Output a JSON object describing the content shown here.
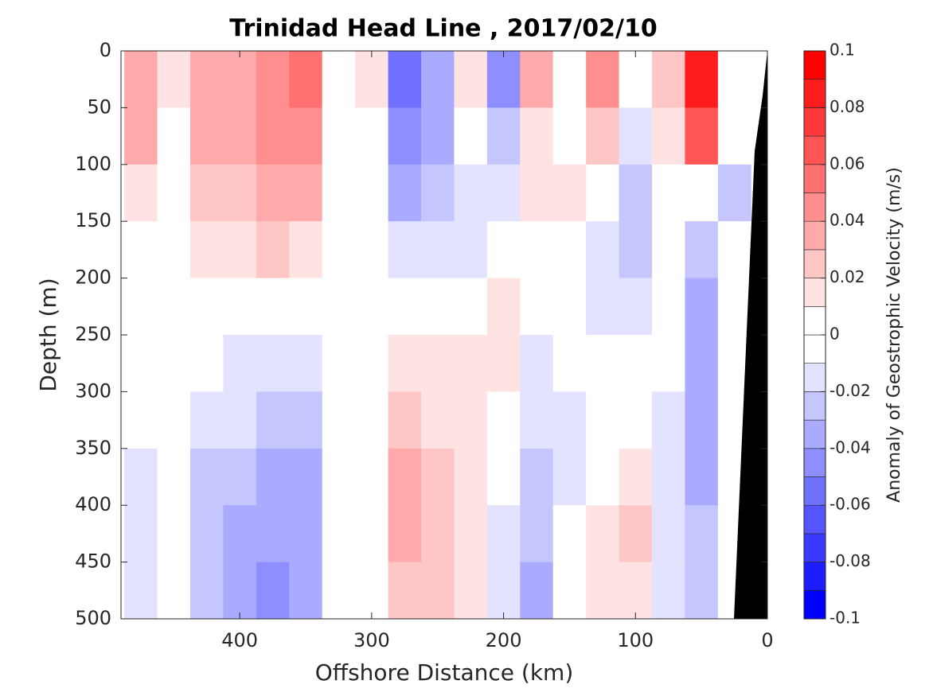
{
  "chart_data": {
    "type": "contour",
    "title": "Trinidad Head Line , 2017/02/10",
    "xlabel": "Offshore Distance (km)",
    "ylabel": "Depth (m)",
    "colorbar_label": "Anomaly of Geostrophic Velocity (m/s)",
    "xlim": [
      490,
      0
    ],
    "xticks": [
      400,
      300,
      200,
      100,
      0
    ],
    "ylim": [
      0,
      500
    ],
    "yticks": [
      0,
      50,
      100,
      150,
      200,
      250,
      300,
      350,
      400,
      450,
      500
    ],
    "clim": [
      -0.1,
      0.1
    ],
    "cstep": 0.01,
    "cticks": [
      -0.1,
      -0.08,
      -0.06,
      -0.04,
      -0.02,
      0,
      0.02,
      0.04,
      0.06,
      0.08,
      0.1
    ],
    "neg_color": "#0000ff",
    "pos_color": "#ff0000",
    "bottom_color": "#000000",
    "x": [
      475,
      450,
      425,
      400,
      375,
      350,
      325,
      300,
      275,
      250,
      225,
      200,
      175,
      150,
      125,
      100,
      75,
      50,
      25
    ],
    "depth": [
      25,
      75,
      125,
      175,
      225,
      275,
      325,
      375,
      425,
      475
    ],
    "z": [
      [
        0.03,
        0.01,
        0.03,
        0.03,
        0.04,
        0.05,
        0,
        0.01,
        -0.05,
        -0.03,
        0.01,
        -0.04,
        0.03,
        0,
        0.04,
        0,
        0.02,
        0.08,
        0
      ],
      [
        0.03,
        0,
        0.03,
        0.03,
        0.04,
        0.04,
        0,
        0,
        -0.04,
        -0.03,
        0,
        -0.02,
        0.01,
        0,
        0.02,
        -0.01,
        0.01,
        0.06,
        0
      ],
      [
        0.01,
        0,
        0.02,
        0.02,
        0.03,
        0.03,
        0,
        0,
        -0.03,
        -0.02,
        -0.01,
        -0.01,
        0.01,
        0.01,
        0,
        -0.02,
        0,
        0,
        -0.02
      ],
      [
        0,
        0,
        0.01,
        0.01,
        0.02,
        0.01,
        0,
        0,
        -0.01,
        -0.01,
        -0.01,
        0,
        0,
        0,
        -0.01,
        -0.02,
        0,
        -0.02,
        0
      ],
      [
        0,
        0,
        0,
        0,
        0,
        0,
        0,
        0,
        0,
        0,
        0,
        0.01,
        0,
        0,
        -0.01,
        -0.01,
        0,
        -0.03,
        0
      ],
      [
        0,
        0,
        0,
        -0.01,
        -0.01,
        -0.01,
        0,
        0,
        0.01,
        0.01,
        0.01,
        0.01,
        -0.01,
        0,
        0,
        0,
        0,
        -0.03,
        0
      ],
      [
        0,
        0,
        -0.01,
        -0.01,
        -0.02,
        -0.02,
        0,
        0,
        0.02,
        0.01,
        0.01,
        0,
        -0.01,
        -0.01,
        0,
        0,
        -0.01,
        -0.03,
        0
      ],
      [
        -0.01,
        0,
        -0.02,
        -0.02,
        -0.03,
        -0.03,
        0,
        0,
        0.03,
        0.02,
        0.01,
        0,
        -0.02,
        -0.01,
        0,
        0.01,
        -0.01,
        -0.03,
        0
      ],
      [
        -0.01,
        0,
        -0.02,
        -0.03,
        -0.03,
        -0.03,
        0,
        0,
        0.03,
        0.02,
        0.01,
        -0.01,
        -0.02,
        0,
        0.01,
        0.02,
        -0.01,
        -0.02,
        0
      ],
      [
        -0.01,
        0,
        -0.02,
        -0.03,
        -0.04,
        -0.03,
        0,
        0,
        0.02,
        0.02,
        0.01,
        -0.01,
        -0.03,
        0,
        0.01,
        0.01,
        -0.01,
        -0.02,
        0
      ]
    ]
  }
}
